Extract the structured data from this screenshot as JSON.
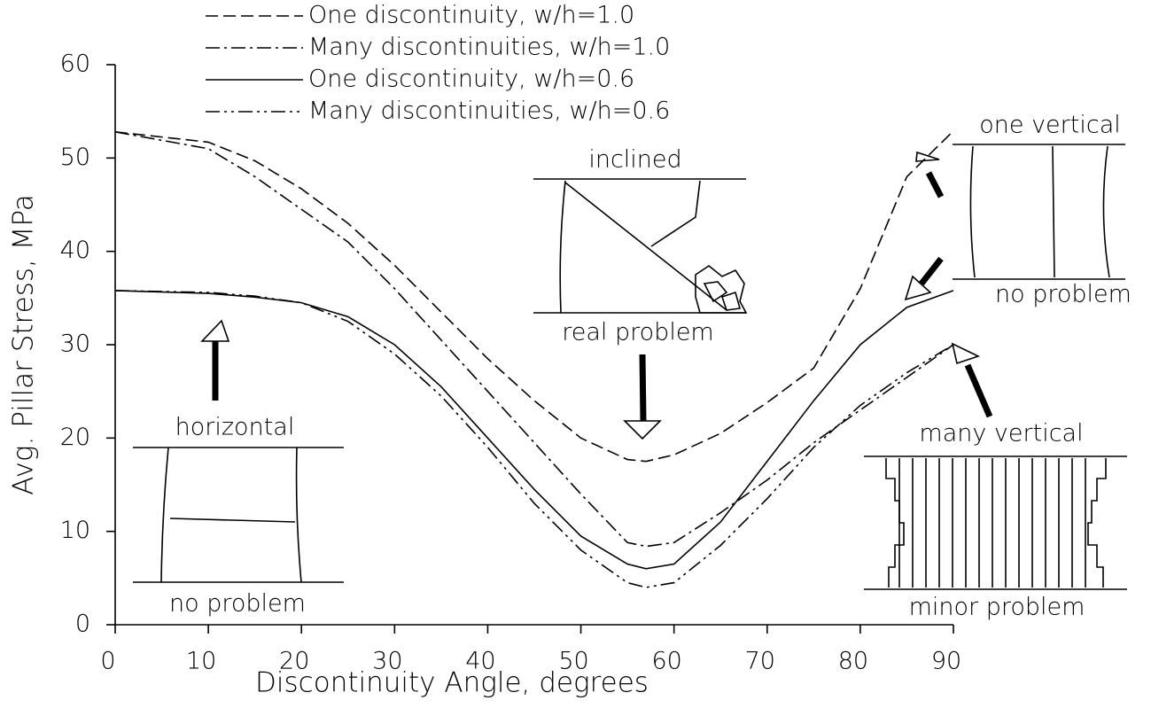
{
  "chart_data": {
    "type": "line",
    "x_label": "Discontinuity Angle, degrees",
    "y_label": "Avg. Pillar Stress, MPa",
    "xlim": [
      0,
      90
    ],
    "xticks": [
      0,
      10,
      20,
      30,
      40,
      50,
      60,
      70,
      80,
      90
    ],
    "ylim": [
      0,
      60
    ],
    "yticks": [
      0,
      10,
      20,
      30,
      40,
      50,
      60
    ],
    "x": [
      0,
      10,
      15,
      20,
      25,
      30,
      35,
      40,
      45,
      50,
      55,
      57,
      60,
      65,
      70,
      75,
      80,
      85,
      90
    ],
    "series": [
      {
        "name": "One discontinuity, w/h=1.0",
        "color": "#000000",
        "linestyle": "dashed",
        "values": [
          52.8,
          51.7,
          49.7,
          46.7,
          43,
          38.5,
          33.5,
          28.5,
          24,
          20,
          17.7,
          17.5,
          18.2,
          20.5,
          23.8,
          27.5,
          36,
          48,
          52.9
        ]
      },
      {
        "name": "Many discontinuities, w/h=1.0",
        "color": "#000000",
        "linestyle": "dashdot",
        "values": [
          52.8,
          51,
          48,
          44.5,
          41,
          36,
          30.5,
          25,
          19.5,
          14,
          8.8,
          8.4,
          8.8,
          12,
          15.5,
          19.5,
          23,
          26.5,
          30
        ]
      },
      {
        "name": "One discontinuity, w/h=0.6",
        "color": "#000000",
        "linestyle": "solid",
        "values": [
          35.8,
          35.5,
          35.1,
          34.5,
          33,
          30,
          25.5,
          20,
          14.5,
          9.5,
          6.5,
          6,
          6.5,
          11,
          17.5,
          24,
          30,
          34,
          35.8
        ]
      },
      {
        "name": "Many discontinuities, w/h=0.6",
        "color": "#000000",
        "linestyle": "dashdotdot",
        "values": [
          35.8,
          35.6,
          35.2,
          34.5,
          32.5,
          29,
          24.5,
          19,
          13,
          8,
          4.5,
          4,
          4.5,
          8.5,
          13.5,
          19,
          23.5,
          27,
          30
        ]
      }
    ],
    "annotations": [
      "horizontal",
      "no problem",
      "inclined",
      "real problem",
      "one vertical",
      "no problem",
      "many vertical",
      "minor problem"
    ]
  }
}
